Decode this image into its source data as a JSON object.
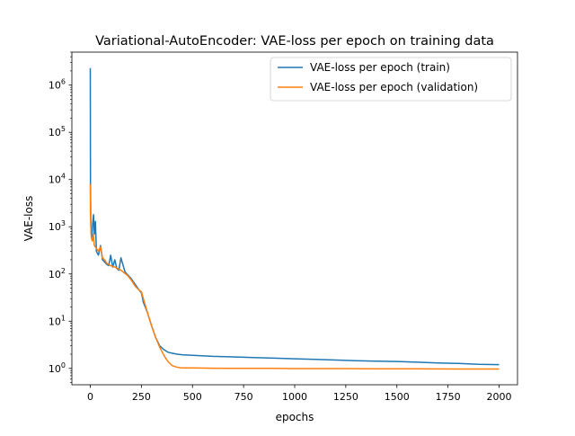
{
  "chart_data": {
    "type": "line",
    "title": "Variational-AutoEncoder: VAE-loss per epoch on training data",
    "xlabel": "epochs",
    "ylabel": "VAE-loss",
    "xlim": [
      -90,
      2090
    ],
    "ylim": [
      0.45,
      5000000
    ],
    "yscale": "log",
    "grid": false,
    "legend_position": "top-right",
    "x_ticks": [
      0,
      250,
      500,
      750,
      1000,
      1250,
      1500,
      1750,
      2000
    ],
    "y_ticks": [
      1,
      10,
      100,
      1000,
      10000,
      100000,
      1000000
    ],
    "y_tick_labels": [
      {
        "base": "10",
        "exp": "0"
      },
      {
        "base": "10",
        "exp": "1"
      },
      {
        "base": "10",
        "exp": "2"
      },
      {
        "base": "10",
        "exp": "3"
      },
      {
        "base": "10",
        "exp": "4"
      },
      {
        "base": "10",
        "exp": "5"
      },
      {
        "base": "10",
        "exp": "6"
      }
    ],
    "series": [
      {
        "name": "VAE-loss per epoch (train)",
        "color": "#1f77b4",
        "x": [
          0,
          1,
          3,
          5,
          8,
          12,
          16,
          20,
          25,
          30,
          40,
          50,
          60,
          70,
          80,
          90,
          100,
          110,
          120,
          130,
          140,
          150,
          170,
          200,
          220,
          240,
          250,
          260,
          280,
          300,
          320,
          340,
          360,
          380,
          400,
          425,
          450,
          500,
          600,
          700,
          800,
          900,
          1000,
          1100,
          1200,
          1300,
          1400,
          1500,
          1600,
          1700,
          1800,
          1900,
          2000
        ],
        "y": [
          2300000,
          7000,
          1000,
          700,
          600,
          1200,
          1800,
          700,
          1300,
          300,
          250,
          400,
          200,
          180,
          160,
          150,
          250,
          140,
          200,
          130,
          120,
          220,
          110,
          80,
          60,
          45,
          40,
          25,
          15,
          8,
          4.5,
          3,
          2.5,
          2.2,
          2.1,
          2.0,
          1.95,
          1.9,
          1.8,
          1.75,
          1.7,
          1.65,
          1.6,
          1.55,
          1.5,
          1.45,
          1.42,
          1.4,
          1.35,
          1.3,
          1.27,
          1.22,
          1.2
        ]
      },
      {
        "name": "VAE-loss per epoch (validation)",
        "color": "#ff7f0e",
        "x": [
          0,
          1,
          3,
          5,
          10,
          15,
          20,
          30,
          40,
          50,
          60,
          70,
          80,
          100,
          120,
          150,
          180,
          200,
          220,
          240,
          250,
          260,
          280,
          300,
          320,
          340,
          360,
          380,
          400,
          420,
          440,
          460,
          500,
          600,
          700,
          800,
          900,
          1000,
          1200,
          1400,
          1600,
          1800,
          2000
        ],
        "y": [
          8000,
          2000,
          900,
          600,
          500,
          700,
          400,
          350,
          300,
          380,
          220,
          200,
          170,
          150,
          140,
          120,
          95,
          75,
          55,
          45,
          42,
          30,
          15,
          8,
          4.5,
          2.8,
          1.9,
          1.4,
          1.15,
          1.07,
          1.03,
          1.02,
          1.02,
          1.01,
          1.0,
          1.0,
          1.0,
          0.99,
          0.99,
          0.98,
          0.98,
          0.97,
          0.97
        ]
      }
    ]
  }
}
